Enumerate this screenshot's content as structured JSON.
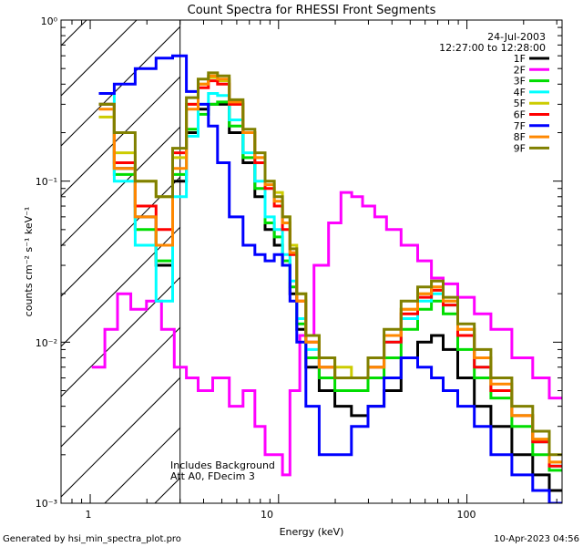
{
  "footer": {
    "generated_by": "Generated by hsi_min_spectra_plot.pro",
    "date": "10-Apr-2023 04:56"
  },
  "chart_data": {
    "type": "line",
    "title": "Count Spectra for RHESSI Front Segments",
    "xlabel": "Energy (keV)",
    "ylabel": "counts cm⁻² s⁻¹ keV⁻¹",
    "xscale": "log",
    "yscale": "log",
    "xlim": [
      0.7,
      320
    ],
    "ylim": [
      0.001,
      1.0
    ],
    "x_tick_labels": [
      "1",
      "10",
      "100"
    ],
    "y_tick_labels": [
      "10⁻³",
      "10⁻²",
      "10⁻¹",
      "10⁰"
    ],
    "legend_location": "top-right",
    "info_lines": [
      "24-Jul-2003",
      "12:27:00 to 12:28:00"
    ],
    "annotations": [
      "Includes Background",
      "Att A0, FDecim 3"
    ],
    "hatched_region_below_keV": 3,
    "series": [
      {
        "name": "1F",
        "color": "#000000",
        "x": [
          1.2,
          1.5,
          2.0,
          2.5,
          3.0,
          3.5,
          4.0,
          4.5,
          5.0,
          6.0,
          7.0,
          8.0,
          9.0,
          10.0,
          11.0,
          12.0,
          13.0,
          15.0,
          18.0,
          22.0,
          27.0,
          33.0,
          40.0,
          50.0,
          60.0,
          70.0,
          80.0,
          100.0,
          120.0,
          150.0,
          200.0,
          250.0,
          300.0
        ],
        "y": [
          0.3,
          0.12,
          0.06,
          0.03,
          0.1,
          0.2,
          0.28,
          0.3,
          0.3,
          0.2,
          0.13,
          0.08,
          0.05,
          0.04,
          0.03,
          0.02,
          0.012,
          0.007,
          0.005,
          0.004,
          0.0035,
          0.004,
          0.005,
          0.008,
          0.01,
          0.011,
          0.009,
          0.006,
          0.004,
          0.003,
          0.002,
          0.0015,
          0.0012
        ]
      },
      {
        "name": "2F",
        "color": "#ff00ff",
        "x": [
          1.1,
          1.3,
          1.5,
          1.8,
          2.2,
          2.6,
          3.0,
          3.5,
          4.0,
          5.0,
          6.0,
          7.0,
          8.0,
          9.0,
          10.0,
          11.0,
          12.0,
          14.0,
          17.0,
          20.0,
          23.0,
          26.0,
          30.0,
          35.0,
          40.0,
          50.0,
          60.0,
          70.0,
          80.0,
          100.0,
          120.0,
          150.0,
          200.0,
          250.0,
          300.0
        ],
        "y": [
          0.007,
          0.012,
          0.02,
          0.016,
          0.018,
          0.012,
          0.007,
          0.006,
          0.005,
          0.006,
          0.004,
          0.005,
          0.003,
          0.002,
          0.002,
          0.0015,
          0.005,
          0.011,
          0.03,
          0.055,
          0.085,
          0.08,
          0.07,
          0.06,
          0.05,
          0.04,
          0.032,
          0.025,
          0.023,
          0.019,
          0.015,
          0.012,
          0.008,
          0.006,
          0.0045
        ]
      },
      {
        "name": "3F",
        "color": "#00dd00",
        "x": [
          1.2,
          1.5,
          2.0,
          2.5,
          3.0,
          3.5,
          4.0,
          4.5,
          5.0,
          6.0,
          7.0,
          8.0,
          9.0,
          10.0,
          11.0,
          12.0,
          13.0,
          15.0,
          18.0,
          22.0,
          27.0,
          33.0,
          40.0,
          50.0,
          60.0,
          70.0,
          80.0,
          100.0,
          120.0,
          150.0,
          200.0,
          250.0,
          300.0
        ],
        "y": [
          0.3,
          0.11,
          0.05,
          0.032,
          0.11,
          0.21,
          0.26,
          0.3,
          0.31,
          0.22,
          0.14,
          0.09,
          0.055,
          0.045,
          0.032,
          0.022,
          0.013,
          0.008,
          0.006,
          0.005,
          0.005,
          0.006,
          0.008,
          0.012,
          0.016,
          0.018,
          0.015,
          0.009,
          0.006,
          0.0045,
          0.003,
          0.002,
          0.0016
        ]
      },
      {
        "name": "4F",
        "color": "#00ffff",
        "x": [
          1.2,
          1.5,
          2.0,
          2.5,
          3.0,
          3.5,
          4.0,
          4.5,
          5.0,
          6.0,
          7.0,
          8.0,
          9.0,
          10.0,
          11.0,
          12.0,
          13.0,
          15.0,
          18.0,
          22.0,
          27.0,
          33.0,
          40.0,
          50.0,
          60.0,
          70.0,
          80.0,
          100.0,
          120.0,
          150.0,
          200.0,
          250.0,
          300.0
        ],
        "y": [
          0.35,
          0.1,
          0.04,
          0.018,
          0.08,
          0.19,
          0.3,
          0.35,
          0.34,
          0.24,
          0.15,
          0.1,
          0.06,
          0.05,
          0.035,
          0.024,
          0.014,
          0.009,
          0.007,
          0.006,
          0.006,
          0.007,
          0.01,
          0.014,
          0.018,
          0.02,
          0.017,
          0.011,
          0.007,
          0.005,
          0.0035,
          0.0024,
          0.0017
        ]
      },
      {
        "name": "5F",
        "color": "#cccc00",
        "x": [
          1.2,
          1.5,
          2.0,
          2.5,
          3.0,
          3.5,
          4.0,
          4.5,
          5.0,
          6.0,
          7.0,
          8.0,
          9.0,
          10.0,
          11.0,
          12.0,
          13.0,
          15.0,
          18.0,
          22.0,
          27.0,
          33.0,
          40.0,
          50.0,
          60.0,
          70.0,
          80.0,
          100.0,
          120.0,
          150.0,
          200.0,
          250.0,
          300.0
        ],
        "y": [
          0.25,
          0.15,
          0.1,
          0.08,
          0.14,
          0.3,
          0.4,
          0.44,
          0.42,
          0.3,
          0.2,
          0.14,
          0.1,
          0.085,
          0.06,
          0.04,
          0.02,
          0.011,
          0.008,
          0.007,
          0.006,
          0.008,
          0.011,
          0.016,
          0.02,
          0.022,
          0.018,
          0.012,
          0.008,
          0.005,
          0.0035,
          0.0025,
          0.0018
        ]
      },
      {
        "name": "6F",
        "color": "#ff0000",
        "x": [
          1.2,
          1.5,
          2.0,
          2.5,
          3.0,
          3.5,
          4.0,
          4.5,
          5.0,
          6.0,
          7.0,
          8.0,
          9.0,
          10.0,
          11.0,
          12.0,
          13.0,
          15.0,
          18.0,
          22.0,
          27.0,
          33.0,
          40.0,
          50.0,
          60.0,
          70.0,
          80.0,
          100.0,
          120.0,
          150.0,
          200.0,
          250.0,
          300.0
        ],
        "y": [
          0.3,
          0.13,
          0.07,
          0.05,
          0.15,
          0.3,
          0.38,
          0.42,
          0.4,
          0.3,
          0.2,
          0.13,
          0.09,
          0.07,
          0.05,
          0.035,
          0.018,
          0.01,
          0.007,
          0.006,
          0.006,
          0.007,
          0.01,
          0.015,
          0.019,
          0.021,
          0.017,
          0.011,
          0.007,
          0.005,
          0.0035,
          0.0024,
          0.0017
        ]
      },
      {
        "name": "7F",
        "color": "#0000ff",
        "x": [
          1.2,
          1.5,
          2.0,
          2.5,
          3.0,
          3.5,
          4.0,
          4.5,
          5.0,
          6.0,
          7.0,
          8.0,
          9.0,
          10.0,
          11.0,
          12.0,
          13.0,
          15.0,
          18.0,
          22.0,
          27.0,
          33.0,
          40.0,
          50.0,
          60.0,
          70.0,
          80.0,
          100.0,
          120.0,
          150.0,
          200.0,
          250.0,
          300.0
        ],
        "y": [
          0.35,
          0.4,
          0.5,
          0.58,
          0.6,
          0.36,
          0.3,
          0.22,
          0.13,
          0.06,
          0.04,
          0.035,
          0.032,
          0.035,
          0.03,
          0.018,
          0.01,
          0.004,
          0.002,
          0.002,
          0.003,
          0.004,
          0.006,
          0.008,
          0.007,
          0.006,
          0.005,
          0.004,
          0.003,
          0.002,
          0.0015,
          0.0012,
          0.001
        ]
      },
      {
        "name": "8F",
        "color": "#ff8800",
        "x": [
          1.2,
          1.5,
          2.0,
          2.5,
          3.0,
          3.5,
          4.0,
          4.5,
          5.0,
          6.0,
          7.0,
          8.0,
          9.0,
          10.0,
          11.0,
          12.0,
          13.0,
          15.0,
          18.0,
          22.0,
          27.0,
          33.0,
          40.0,
          50.0,
          60.0,
          70.0,
          80.0,
          100.0,
          120.0,
          150.0,
          200.0,
          250.0,
          300.0
        ],
        "y": [
          0.28,
          0.12,
          0.06,
          0.04,
          0.12,
          0.28,
          0.4,
          0.45,
          0.43,
          0.31,
          0.2,
          0.14,
          0.095,
          0.075,
          0.055,
          0.036,
          0.018,
          0.01,
          0.007,
          0.006,
          0.006,
          0.007,
          0.011,
          0.016,
          0.02,
          0.022,
          0.018,
          0.012,
          0.008,
          0.0055,
          0.0035,
          0.0025,
          0.0018
        ]
      },
      {
        "name": "9F",
        "color": "#808000",
        "x": [
          1.2,
          1.5,
          2.0,
          2.5,
          3.0,
          3.5,
          4.0,
          4.5,
          5.0,
          6.0,
          7.0,
          8.0,
          9.0,
          10.0,
          11.0,
          12.0,
          13.0,
          15.0,
          18.0,
          22.0,
          27.0,
          33.0,
          40.0,
          50.0,
          60.0,
          70.0,
          80.0,
          100.0,
          120.0,
          150.0,
          200.0,
          250.0,
          300.0
        ],
        "y": [
          0.3,
          0.2,
          0.1,
          0.08,
          0.16,
          0.33,
          0.43,
          0.47,
          0.45,
          0.32,
          0.21,
          0.15,
          0.1,
          0.08,
          0.06,
          0.038,
          0.02,
          0.011,
          0.008,
          0.006,
          0.006,
          0.008,
          0.012,
          0.018,
          0.022,
          0.024,
          0.019,
          0.013,
          0.009,
          0.006,
          0.004,
          0.0028,
          0.002
        ]
      }
    ]
  }
}
